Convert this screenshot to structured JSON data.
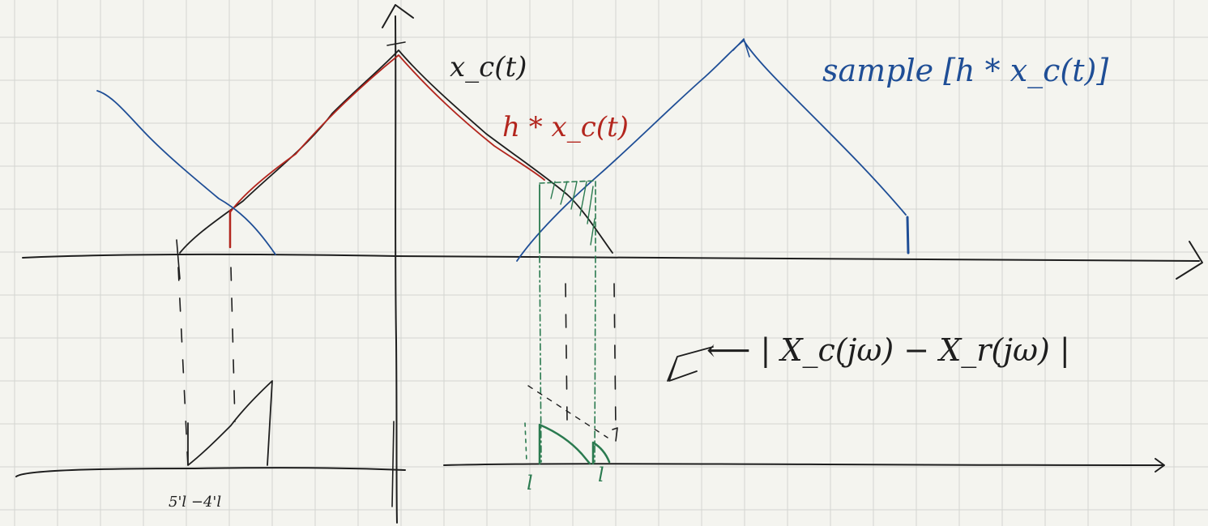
{
  "labels": {
    "xc_t": "x_c(t)",
    "h_conv": "h * x_c(t)",
    "sample": "sample [h * x_c(t)]",
    "error": "⟵ | X_c(jω) − X_r(jω) |",
    "tick_left": "5'l  −4'l",
    "mark_l1": "l",
    "mark_l2": "l"
  },
  "colors": {
    "background": "#f4f4ef",
    "grid": "#d3d5d0",
    "black": "#1e1e1e",
    "red": "#b3261e",
    "blue": "#1f4e96",
    "green": "#2a7a4f"
  }
}
